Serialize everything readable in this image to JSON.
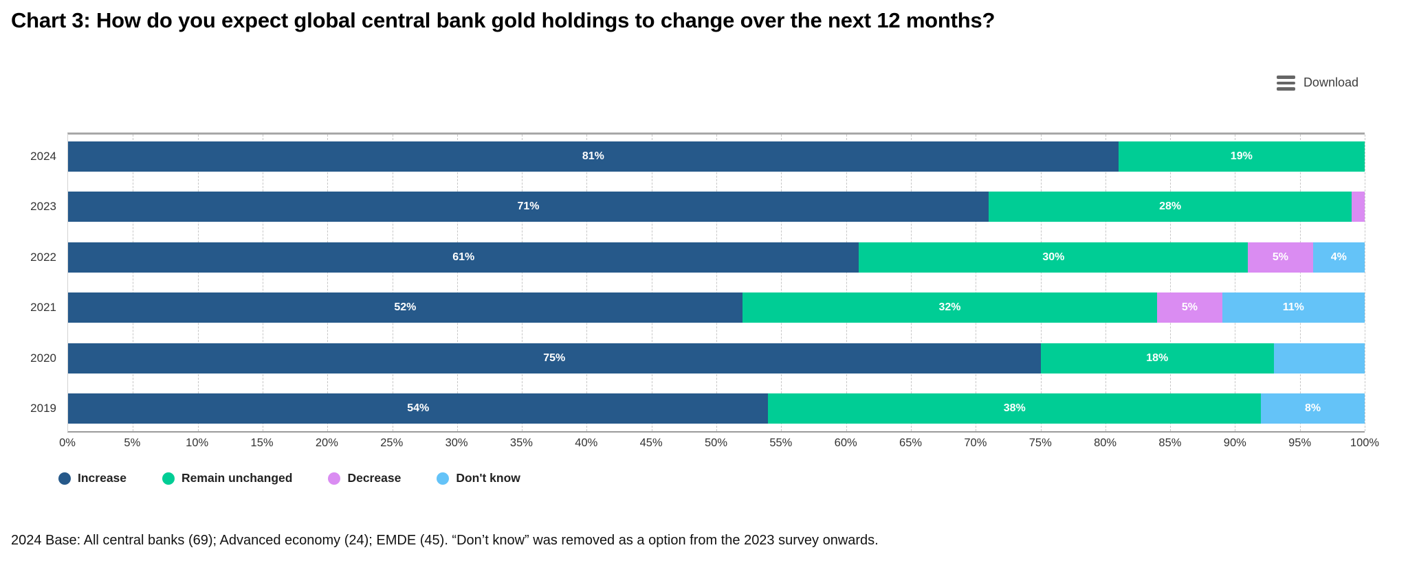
{
  "title": "Chart 3: How do you expect global central bank gold holdings to change over the next 12 months?",
  "toolbar": {
    "download_label": "Download",
    "download_icon": "menu-lines-icon"
  },
  "footnote": "2024 Base: All central banks (69); Advanced economy (24); EMDE (45). “Don’t know” was removed as a option from the 2023 survey onwards.",
  "colors": {
    "increase": "#26598A",
    "remain_unchanged": "#00CD95",
    "decrease": "#DA8CF2",
    "dont_know": "#64C3F8"
  },
  "chart_data": {
    "type": "bar",
    "orientation": "horizontal-stacked",
    "title": "Chart 3: How do you expect global central bank gold holdings to change over the next 12 months?",
    "categories": [
      "2024",
      "2023",
      "2022",
      "2021",
      "2020",
      "2019"
    ],
    "series": [
      {
        "name": "Increase",
        "color": "#26598A",
        "values": [
          81,
          71,
          61,
          52,
          75,
          54
        ],
        "labels": [
          "81%",
          "71%",
          "61%",
          "52%",
          "75%",
          "54%"
        ]
      },
      {
        "name": "Remain unchanged",
        "color": "#00CD95",
        "values": [
          19,
          28,
          30,
          32,
          18,
          38
        ],
        "labels": [
          "19%",
          "28%",
          "30%",
          "32%",
          "18%",
          "38%"
        ]
      },
      {
        "name": "Decrease",
        "color": "#DA8CF2",
        "values": [
          0,
          1,
          5,
          5,
          0,
          0
        ],
        "labels": [
          null,
          null,
          "5%",
          "5%",
          null,
          null
        ]
      },
      {
        "name": "Don't know",
        "color": "#64C3F8",
        "values": [
          0,
          0,
          4,
          11,
          7,
          8
        ],
        "labels": [
          null,
          null,
          "4%",
          "11%",
          null,
          "8%"
        ]
      }
    ],
    "xlabel": "",
    "ylabel": "",
    "xlim": [
      0,
      100
    ],
    "x_ticks": [
      "0%",
      "5%",
      "10%",
      "15%",
      "20%",
      "25%",
      "30%",
      "35%",
      "40%",
      "45%",
      "50%",
      "55%",
      "60%",
      "65%",
      "70%",
      "75%",
      "80%",
      "85%",
      "90%",
      "95%",
      "100%"
    ],
    "grid": "vertical-dashed",
    "legend_position": "bottom",
    "legend": [
      "Increase",
      "Remain unchanged",
      "Decrease",
      "Don't know"
    ]
  }
}
